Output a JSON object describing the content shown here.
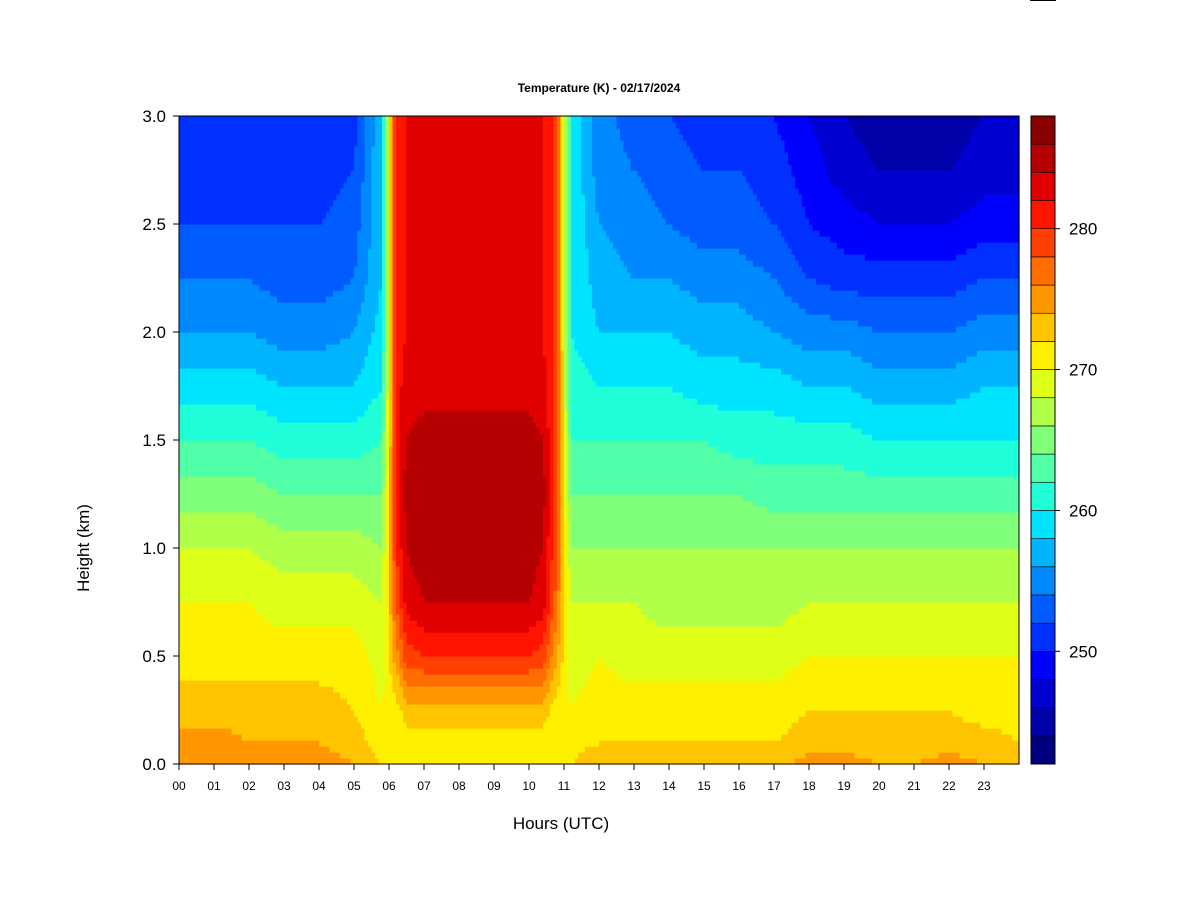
{
  "chart_data": {
    "type": "heatmap",
    "title": "Temperature (K) - 02/17/2024",
    "xlabel": "Hours (UTC)",
    "ylabel": "Height (km)",
    "x_range": [
      0,
      24
    ],
    "y_range": [
      0,
      3.0
    ],
    "x_ticks": [
      "00",
      "01",
      "02",
      "03",
      "04",
      "05",
      "06",
      "07",
      "08",
      "09",
      "10",
      "11",
      "12",
      "13",
      "14",
      "15",
      "16",
      "17",
      "18",
      "19",
      "20",
      "21",
      "22",
      "23"
    ],
    "y_ticks": [
      "0.0",
      "0.5",
      "1.0",
      "1.5",
      "2.0",
      "2.5",
      "3.0"
    ],
    "colorbar": {
      "min": 242,
      "max": 288,
      "step": 2,
      "ticks": [
        "250",
        "260",
        "270",
        "280"
      ],
      "colors": [
        "#00007f",
        "#0000a8",
        "#0000d0",
        "#0000ff",
        "#0030ff",
        "#005cff",
        "#0088ff",
        "#00b4ff",
        "#00e4ff",
        "#20ffd8",
        "#50ffa8",
        "#80ff78",
        "#b0ff48",
        "#e0ff18",
        "#fff000",
        "#ffc400",
        "#ff9800",
        "#ff6c00",
        "#ff4000",
        "#ff1400",
        "#e00000",
        "#b40000",
        "#880000"
      ]
    },
    "hours": [
      0,
      1,
      2,
      3,
      4,
      5,
      5.8,
      6.2,
      6.5,
      7,
      8,
      9,
      10,
      10.4,
      10.8,
      11.2,
      12,
      13,
      14,
      15,
      16,
      17,
      18,
      19,
      20,
      21,
      22,
      23,
      24
    ],
    "heights": [
      0,
      0.1,
      0.25,
      0.5,
      0.75,
      1.0,
      1.25,
      1.5,
      1.75,
      2.0,
      2.25,
      2.5,
      2.75,
      3.0
    ],
    "temperature_profiles_K": [
      [
        276,
        275,
        273,
        271,
        270,
        268,
        265,
        262,
        259,
        256,
        254,
        252,
        251,
        250
      ],
      [
        276,
        275,
        273,
        271,
        270,
        268,
        265,
        262,
        259,
        256,
        254,
        252,
        251,
        250
      ],
      [
        275,
        274,
        273,
        271,
        270,
        268,
        265,
        262,
        259,
        256,
        254,
        252,
        251,
        250
      ],
      [
        275,
        274,
        273,
        271,
        269,
        267,
        264,
        261,
        258,
        255,
        253,
        252,
        251,
        250
      ],
      [
        275,
        274,
        273,
        271,
        269,
        267,
        264,
        261,
        258,
        255,
        253,
        252,
        251,
        250
      ],
      [
        274,
        273,
        272,
        271,
        269,
        267,
        264,
        261,
        258,
        256,
        254,
        253,
        252,
        251
      ],
      [
        272,
        271,
        270,
        269,
        268,
        266,
        264,
        262,
        260,
        259,
        258,
        258,
        258,
        258
      ],
      [
        270,
        270,
        271,
        275,
        278,
        280,
        281,
        281,
        281,
        281,
        281,
        281,
        281,
        281
      ],
      [
        270,
        271,
        273,
        279,
        283,
        284,
        285,
        284,
        283,
        282,
        282,
        282,
        282,
        282
      ],
      [
        270,
        271,
        273,
        280,
        284,
        285,
        286,
        285,
        283,
        282,
        282,
        282,
        282,
        282
      ],
      [
        270,
        271,
        273,
        280,
        284,
        285,
        286,
        285,
        283,
        282,
        282,
        282,
        282,
        282
      ],
      [
        270,
        271,
        273,
        280,
        284,
        285,
        286,
        285,
        283,
        282,
        283,
        282,
        282,
        282
      ],
      [
        270,
        271,
        273,
        280,
        284,
        285,
        286,
        285,
        283,
        282,
        282,
        282,
        282,
        282
      ],
      [
        270,
        271,
        273,
        279,
        283,
        284,
        285,
        284,
        283,
        282,
        282,
        282,
        282,
        282
      ],
      [
        270,
        270,
        271,
        274,
        277,
        278,
        279,
        279,
        279,
        279,
        279,
        279,
        279,
        279
      ],
      [
        272,
        271,
        270,
        269,
        268,
        266,
        264,
        262,
        261,
        260,
        260,
        260,
        260,
        260
      ],
      [
        274,
        272,
        271,
        270,
        268,
        266,
        264,
        262,
        260,
        258,
        257,
        256,
        255,
        255
      ],
      [
        274,
        272,
        271,
        269,
        268,
        266,
        264,
        262,
        260,
        258,
        256,
        255,
        254,
        253
      ],
      [
        274,
        272,
        271,
        269,
        267,
        266,
        264,
        262,
        260,
        258,
        256,
        254,
        253,
        252
      ],
      [
        274,
        272,
        271,
        269,
        267,
        266,
        264,
        262,
        259,
        257,
        255,
        253,
        252,
        251
      ],
      [
        273,
        272,
        271,
        269,
        267,
        266,
        264,
        261,
        259,
        257,
        255,
        253,
        252,
        251
      ],
      [
        273,
        272,
        271,
        269,
        267,
        266,
        263,
        261,
        259,
        256,
        254,
        252,
        251,
        250
      ],
      [
        275,
        273,
        272,
        270,
        268,
        266,
        263,
        261,
        258,
        255,
        252,
        250,
        249,
        248
      ],
      [
        275,
        273,
        272,
        270,
        268,
        266,
        263,
        261,
        258,
        255,
        251,
        249,
        247,
        246
      ],
      [
        274,
        273,
        272,
        270,
        268,
        266,
        263,
        260,
        257,
        254,
        251,
        248,
        246,
        245
      ],
      [
        274,
        273,
        272,
        270,
        268,
        266,
        263,
        260,
        257,
        254,
        251,
        248,
        246,
        245
      ],
      [
        275,
        273,
        272,
        270,
        268,
        266,
        263,
        260,
        257,
        254,
        251,
        248,
        246,
        245
      ],
      [
        274,
        273,
        271,
        270,
        268,
        266,
        263,
        260,
        258,
        255,
        252,
        249,
        247,
        246
      ],
      [
        273,
        272,
        271,
        270,
        268,
        266,
        263,
        260,
        258,
        255,
        252,
        249,
        247,
        246
      ]
    ]
  }
}
